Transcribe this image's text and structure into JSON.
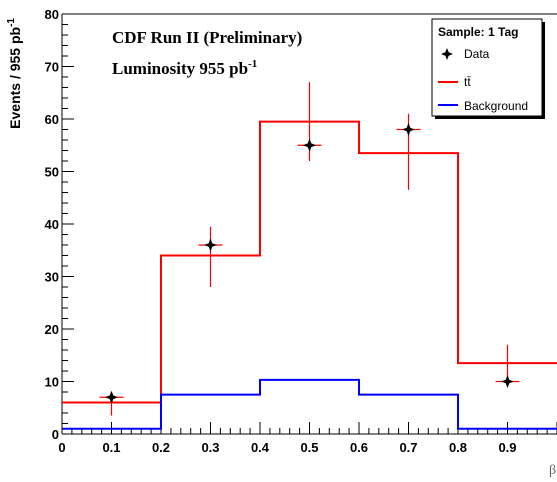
{
  "chart_data": {
    "type": "histogram",
    "title": "CDF Run II (Preliminary)",
    "subtitle_prefix": "Luminosity 955 pb",
    "subtitle_sup": "-1",
    "ylabel_prefix": "Events / 955 pb",
    "ylabel_sup": "-1",
    "xlabel": "β",
    "xlim": [
      0,
      1
    ],
    "ylim": [
      0,
      80
    ],
    "x_ticks": [
      "0",
      "0.1",
      "0.2",
      "0.3",
      "0.4",
      "0.5",
      "0.6",
      "0.7",
      "0.8",
      "0.9"
    ],
    "y_ticks": [
      "0",
      "10",
      "20",
      "30",
      "40",
      "50",
      "60",
      "70",
      "80"
    ],
    "legend": {
      "title": "Sample: 1 Tag",
      "position": "top-right",
      "entries": [
        "Data",
        "tt̄",
        "Background"
      ]
    },
    "bin_edges": [
      0,
      0.2,
      0.4,
      0.6,
      0.8,
      1.0
    ],
    "series": [
      {
        "name": "tt̄",
        "color": "#ff0000",
        "values": [
          6,
          34,
          59.5,
          53.5,
          13.5
        ]
      },
      {
        "name": "Background",
        "color": "#0000ff",
        "values": [
          1,
          7.5,
          10.3,
          7.5,
          1
        ]
      }
    ],
    "data_points": {
      "name": "Data",
      "x": [
        0.1,
        0.3,
        0.5,
        0.7,
        0.9
      ],
      "y": [
        7,
        36,
        55,
        58,
        10
      ],
      "err_low": [
        3.5,
        8,
        3,
        11.5,
        0
      ],
      "err_high": [
        1,
        3.5,
        12,
        3,
        7
      ]
    }
  }
}
